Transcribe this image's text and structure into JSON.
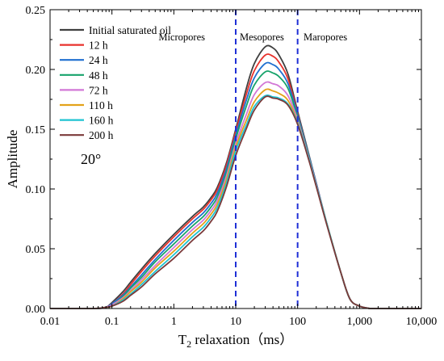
{
  "chart_data": {
    "type": "line",
    "xscale": "log",
    "xlabel": "T2 relaxation（ms）",
    "ylabel": "Amplitude",
    "xlim": [
      0.01,
      10000
    ],
    "ylim": [
      0,
      0.25
    ],
    "xticks": [
      0.01,
      0.1,
      1,
      10,
      100,
      1000,
      10000
    ],
    "xtick_labels": [
      "0.01",
      "0.1",
      "1",
      "10",
      "100",
      "1,000",
      "10,000"
    ],
    "yticks": [
      0,
      0.05,
      0.1,
      0.15,
      0.2,
      0.25
    ],
    "ytick_labels": [
      "0.00",
      "0.05",
      "0.10",
      "0.15",
      "0.20",
      "0.25"
    ],
    "grid": false,
    "legend_position": "top-left",
    "annotation": "20°",
    "vlines": [
      {
        "x": 10,
        "color": "#1f2fd6",
        "style": "dashed"
      },
      {
        "x": 100,
        "color": "#1f2fd6",
        "style": "dashed"
      }
    ],
    "zones": [
      {
        "label": "Micropores",
        "position": "left of x=10"
      },
      {
        "label": "Mesopores",
        "position": "between x=10 and x=100"
      },
      {
        "label": "Maropores",
        "position": "right of x=100"
      }
    ],
    "x": [
      0.01,
      0.05,
      0.08,
      0.1,
      0.15,
      0.2,
      0.3,
      0.5,
      1,
      2,
      3,
      4,
      5,
      7,
      10,
      15,
      20,
      30,
      40,
      50,
      70,
      100,
      150,
      200,
      300,
      500,
      700,
      1000,
      1500,
      2000,
      5000,
      10000
    ],
    "series": [
      {
        "name": "Initial saturated oil",
        "color": "#404040",
        "values": [
          0,
          0,
          0.001,
          0.005,
          0.014,
          0.022,
          0.033,
          0.046,
          0.062,
          0.077,
          0.085,
          0.093,
          0.101,
          0.121,
          0.15,
          0.185,
          0.205,
          0.219,
          0.218,
          0.212,
          0.196,
          0.165,
          0.13,
          0.105,
          0.07,
          0.03,
          0.008,
          0.002,
          0,
          0,
          0,
          0
        ]
      },
      {
        "name": "12 h",
        "color": "#e8322c",
        "values": [
          0,
          0,
          0.001,
          0.004,
          0.012,
          0.02,
          0.031,
          0.044,
          0.06,
          0.075,
          0.083,
          0.091,
          0.099,
          0.119,
          0.148,
          0.18,
          0.199,
          0.212,
          0.211,
          0.206,
          0.192,
          0.163,
          0.129,
          0.105,
          0.07,
          0.03,
          0.008,
          0.002,
          0,
          0,
          0,
          0
        ]
      },
      {
        "name": "24 h",
        "color": "#1f6fd0",
        "values": [
          0,
          0,
          0.001,
          0.004,
          0.011,
          0.018,
          0.028,
          0.041,
          0.057,
          0.072,
          0.08,
          0.088,
          0.096,
          0.116,
          0.145,
          0.175,
          0.193,
          0.205,
          0.204,
          0.2,
          0.188,
          0.162,
          0.129,
          0.105,
          0.07,
          0.03,
          0.008,
          0.002,
          0,
          0,
          0,
          0
        ]
      },
      {
        "name": "48 h",
        "color": "#17a36b",
        "values": [
          0,
          0,
          0.001,
          0.003,
          0.01,
          0.017,
          0.026,
          0.039,
          0.054,
          0.069,
          0.077,
          0.085,
          0.093,
          0.113,
          0.142,
          0.17,
          0.187,
          0.198,
          0.197,
          0.194,
          0.184,
          0.16,
          0.128,
          0.104,
          0.07,
          0.03,
          0.008,
          0.002,
          0,
          0,
          0,
          0
        ]
      },
      {
        "name": "72 h",
        "color": "#d277d6",
        "values": [
          0,
          0,
          0.001,
          0.003,
          0.009,
          0.015,
          0.024,
          0.036,
          0.051,
          0.066,
          0.074,
          0.082,
          0.09,
          0.11,
          0.138,
          0.163,
          0.179,
          0.189,
          0.188,
          0.186,
          0.178,
          0.158,
          0.127,
          0.104,
          0.07,
          0.03,
          0.008,
          0.002,
          0,
          0,
          0,
          0
        ]
      },
      {
        "name": "110 h",
        "color": "#e3a21a",
        "values": [
          0,
          0,
          0.001,
          0.002,
          0.008,
          0.014,
          0.022,
          0.034,
          0.048,
          0.063,
          0.071,
          0.079,
          0.087,
          0.107,
          0.135,
          0.158,
          0.173,
          0.183,
          0.182,
          0.18,
          0.174,
          0.156,
          0.126,
          0.103,
          0.07,
          0.03,
          0.008,
          0.002,
          0,
          0,
          0,
          0
        ]
      },
      {
        "name": "160 h",
        "color": "#1ec3d2",
        "values": [
          0,
          0,
          0.001,
          0.002,
          0.007,
          0.012,
          0.02,
          0.031,
          0.045,
          0.06,
          0.068,
          0.076,
          0.084,
          0.104,
          0.132,
          0.154,
          0.169,
          0.178,
          0.177,
          0.176,
          0.171,
          0.155,
          0.126,
          0.103,
          0.07,
          0.03,
          0.008,
          0.002,
          0,
          0,
          0,
          0
        ]
      },
      {
        "name": "200 h",
        "color": "#7b3a3a",
        "values": [
          0,
          0,
          0.001,
          0.002,
          0.006,
          0.011,
          0.018,
          0.029,
          0.042,
          0.057,
          0.065,
          0.073,
          0.081,
          0.101,
          0.128,
          0.151,
          0.166,
          0.177,
          0.176,
          0.175,
          0.17,
          0.154,
          0.125,
          0.102,
          0.069,
          0.03,
          0.008,
          0.002,
          0,
          0,
          0,
          0
        ]
      }
    ]
  }
}
